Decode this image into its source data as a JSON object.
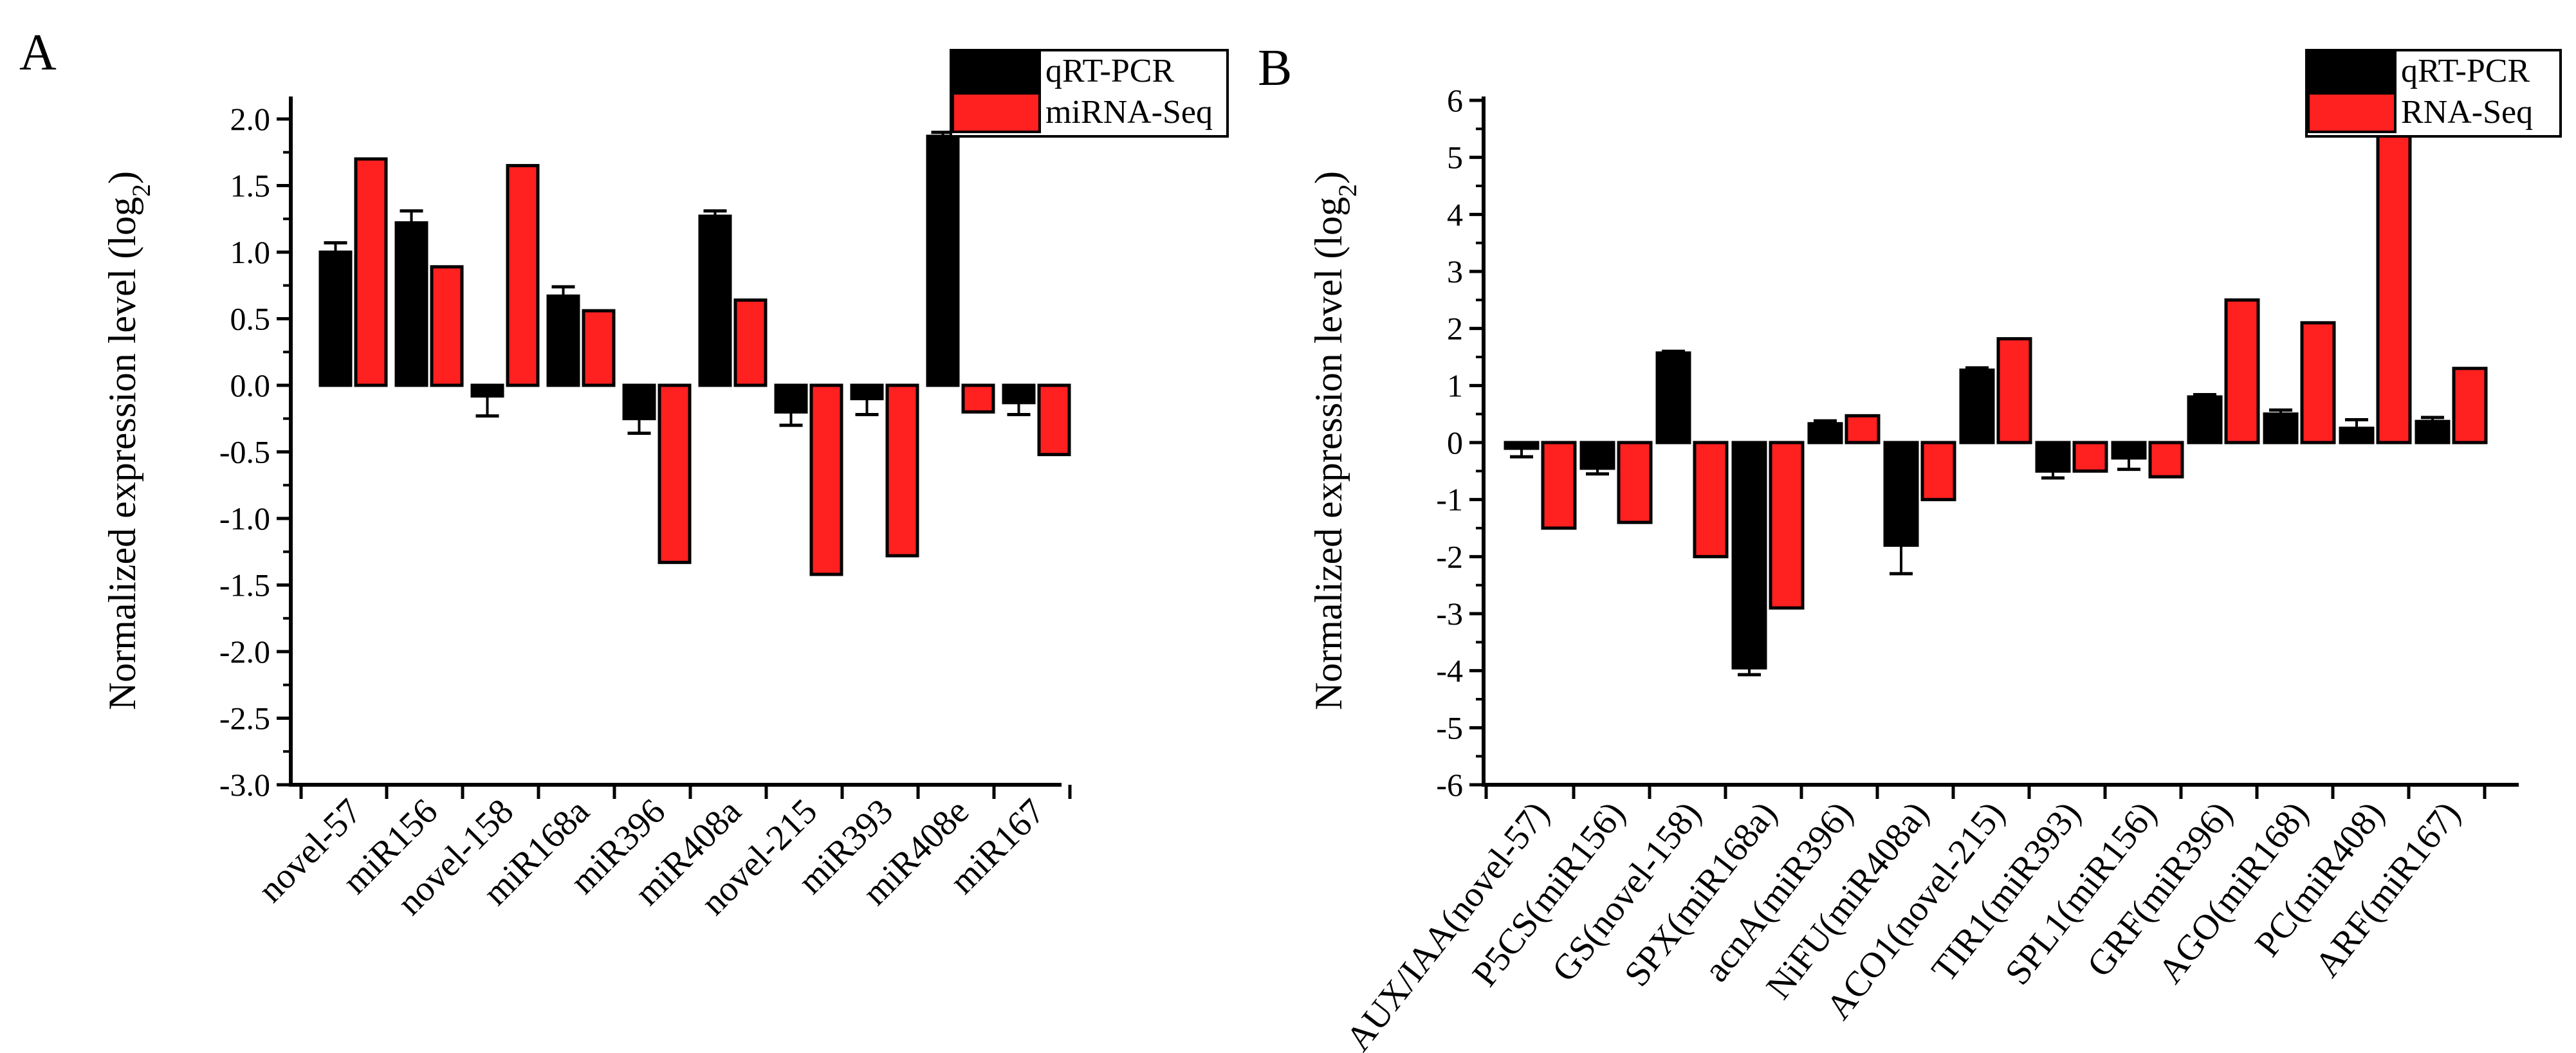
{
  "chart_data": [
    {
      "panel": "A",
      "type": "bar",
      "ylabel": "Normalized expression level (log",
      "ylabel_sub": "2",
      "ylabel_close": ")",
      "ylim": [
        -3.0,
        2.3
      ],
      "yticks": [
        -3.0,
        -2.5,
        -2.0,
        -1.5,
        -1.0,
        -0.5,
        0.0,
        0.5,
        1.0,
        1.5,
        2.0
      ],
      "ytick_labels": [
        "-3.0",
        "-2.5",
        "-2.0",
        "-1.5",
        "-1.0",
        "-0.5",
        "0.0",
        "0.5",
        "1.0",
        "1.5",
        "2.0"
      ],
      "legend_position": "top-right",
      "categories": [
        "novel-57",
        "miR156",
        "novel-158",
        "miR168a",
        "miR396",
        "miR408a",
        "novel-215",
        "miR393",
        "miR408e",
        "miR167"
      ],
      "series": [
        {
          "name": "qRT-PCR",
          "color": "#000000",
          "values": [
            1.0,
            1.22,
            -0.08,
            0.67,
            -0.25,
            1.27,
            -0.2,
            -0.1,
            1.87,
            -0.13
          ],
          "errors": [
            0.07,
            0.09,
            0.15,
            0.07,
            0.11,
            0.04,
            0.1,
            0.12,
            0.03,
            0.09
          ]
        },
        {
          "name": "miRNA-Seq",
          "color": "#ff2020",
          "values": [
            1.7,
            0.89,
            1.65,
            0.56,
            -1.33,
            0.64,
            -1.42,
            -1.28,
            -0.2,
            -0.52
          ]
        }
      ]
    },
    {
      "panel": "B",
      "type": "bar",
      "ylabel": "Normalized expression level (log",
      "ylabel_sub": "2",
      "ylabel_close": ")",
      "ylim": [
        -6,
        6.5
      ],
      "yticks": [
        -6,
        -5,
        -4,
        -3,
        -2,
        -1,
        0,
        1,
        2,
        3,
        4,
        5,
        6
      ],
      "ytick_labels": [
        "-6",
        "-5",
        "-4",
        "-3",
        "-2",
        "-1",
        "0",
        "1",
        "2",
        "3",
        "4",
        "5",
        "6"
      ],
      "legend_position": "top-right",
      "categories": [
        "AUX/IAA(novel-57)",
        "P5CS(miR156)",
        "GS(novel-158)",
        "SPX(miR168a)",
        "acnA(miR396)",
        "NiFU(miR408a)",
        "ACO1(novel-215)",
        "TIR1(miR393)",
        "SPL1(miR156)",
        "GRF(miR396)",
        "AGO(miR168)",
        "PC(miR408)",
        "ARF(miR167)"
      ],
      "series": [
        {
          "name": "qRT-PCR",
          "color": "#000000",
          "values": [
            -0.1,
            -0.45,
            1.57,
            -3.95,
            0.33,
            -1.8,
            1.27,
            -0.5,
            -0.27,
            0.8,
            0.5,
            0.25,
            0.37
          ],
          "errors": [
            0.15,
            0.1,
            0.03,
            0.12,
            0.05,
            0.5,
            0.04,
            0.12,
            0.2,
            0.04,
            0.07,
            0.15,
            0.07
          ]
        },
        {
          "name": "RNA-Seq",
          "color": "#ff2020",
          "values": [
            -1.5,
            -1.4,
            -2.0,
            -2.9,
            0.47,
            -1.0,
            1.82,
            -0.5,
            -0.6,
            2.5,
            2.1,
            5.4,
            1.3
          ]
        }
      ]
    }
  ]
}
